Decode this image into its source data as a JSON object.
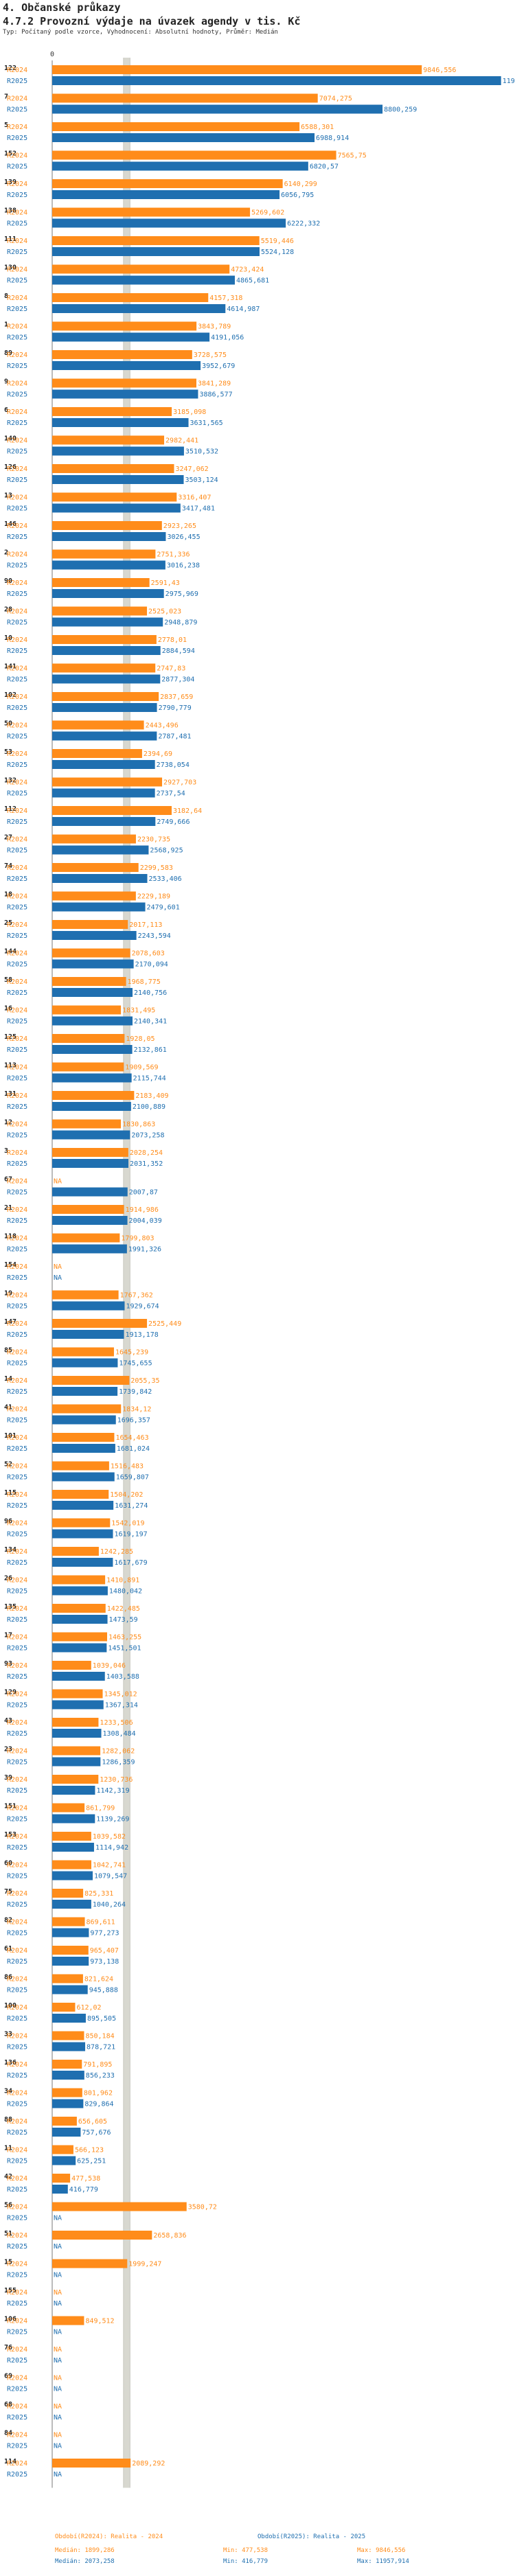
{
  "header": {
    "section": "4. Občanské průkazy",
    "title": "4.7.2 Provozní výdaje na úvazek agendy v tis. Kč",
    "subtitle": "Typ: Počítaný podle vzorce, Vyhodnocení: Absolutní hodnoty, Průměr: Medián"
  },
  "legend": {
    "series1": "Období(R2024): Realita - 2024",
    "series2": "Období(R2025): Realita - 2025",
    "median1": "Medián: 1899,286",
    "min1": "Min: 477,538",
    "max1": "Max: 9846,556",
    "median2": "Medián: 2073,258",
    "min2": "Min: 416,779",
    "max2": "Max: 11957,914"
  },
  "colors": {
    "y2024": "#ff8c1a",
    "y2025": "#1f6fb0",
    "median": "#d8d8d0"
  },
  "chart_data": {
    "type": "bar",
    "orientation": "horizontal",
    "xlim": [
      0,
      12000
    ],
    "x_ticks": [
      "0"
    ],
    "medians": {
      "R2024": 1899.286,
      "R2025": 2073.258
    },
    "series": [
      {
        "name": "R2024",
        "label": "R2024"
      },
      {
        "name": "R2025",
        "label": "R2025"
      }
    ],
    "groups": [
      {
        "id": "122",
        "v24": 9846.556,
        "t24": "9846,556",
        "v25": 11957.914,
        "t25": "11957,914"
      },
      {
        "id": "7",
        "v24": 7074.275,
        "t24": "7074,275",
        "v25": 8800.259,
        "t25": "8800,259"
      },
      {
        "id": "5",
        "v24": 6588.301,
        "t24": "6588,301",
        "v25": 6988.914,
        "t25": "6988,914"
      },
      {
        "id": "152",
        "v24": 7565.75,
        "t24": "7565,75",
        "v25": 6820.57,
        "t25": "6820,57"
      },
      {
        "id": "139",
        "v24": 6140.299,
        "t24": "6140,299",
        "v25": 6056.795,
        "t25": "6056,795"
      },
      {
        "id": "138",
        "v24": 5269.602,
        "t24": "5269,602",
        "v25": 6222.332,
        "t25": "6222,332"
      },
      {
        "id": "111",
        "v24": 5519.446,
        "t24": "5519,446",
        "v25": 5524.128,
        "t25": "5524,128"
      },
      {
        "id": "130",
        "v24": 4723.424,
        "t24": "4723,424",
        "v25": 4865.681,
        "t25": "4865,681"
      },
      {
        "id": "8",
        "v24": 4157.318,
        "t24": "4157,318",
        "v25": 4614.987,
        "t25": "4614,987"
      },
      {
        "id": "1",
        "v24": 3843.789,
        "t24": "3843,789",
        "v25": 4191.056,
        "t25": "4191,056"
      },
      {
        "id": "89",
        "v24": 3728.575,
        "t24": "3728,575",
        "v25": 3952.679,
        "t25": "3952,679"
      },
      {
        "id": "9",
        "v24": 3841.289,
        "t24": "3841,289",
        "v25": 3886.577,
        "t25": "3886,577"
      },
      {
        "id": "6",
        "v24": 3185.098,
        "t24": "3185,098",
        "v25": 3631.565,
        "t25": "3631,565"
      },
      {
        "id": "140",
        "v24": 2982.441,
        "t24": "2982,441",
        "v25": 3510.532,
        "t25": "3510,532"
      },
      {
        "id": "126",
        "v24": 3247.062,
        "t24": "3247,062",
        "v25": 3503.124,
        "t25": "3503,124"
      },
      {
        "id": "13",
        "v24": 3316.407,
        "t24": "3316,407",
        "v25": 3417.481,
        "t25": "3417,481"
      },
      {
        "id": "146",
        "v24": 2923.265,
        "t24": "2923,265",
        "v25": 3026.455,
        "t25": "3026,455"
      },
      {
        "id": "2",
        "v24": 2751.336,
        "t24": "2751,336",
        "v25": 3016.238,
        "t25": "3016,238"
      },
      {
        "id": "90",
        "v24": 2591.43,
        "t24": "2591,43",
        "v25": 2975.969,
        "t25": "2975,969"
      },
      {
        "id": "28",
        "v24": 2525.023,
        "t24": "2525,023",
        "v25": 2948.879,
        "t25": "2948,879"
      },
      {
        "id": "10",
        "v24": 2778.01,
        "t24": "2778,01",
        "v25": 2884.594,
        "t25": "2884,594"
      },
      {
        "id": "141",
        "v24": 2747.83,
        "t24": "2747,83",
        "v25": 2877.304,
        "t25": "2877,304"
      },
      {
        "id": "102",
        "v24": 2837.659,
        "t24": "2837,659",
        "v25": 2790.779,
        "t25": "2790,779"
      },
      {
        "id": "50",
        "v24": 2443.496,
        "t24": "2443,496",
        "v25": 2787.481,
        "t25": "2787,481"
      },
      {
        "id": "53",
        "v24": 2394.69,
        "t24": "2394,69",
        "v25": 2738.054,
        "t25": "2738,054"
      },
      {
        "id": "132",
        "v24": 2927.703,
        "t24": "2927,703",
        "v25": 2737.54,
        "t25": "2737,54"
      },
      {
        "id": "112",
        "v24": 3182.64,
        "t24": "3182,64",
        "v25": 2749.666,
        "t25": "2749,666"
      },
      {
        "id": "27",
        "v24": 2230.735,
        "t24": "2230,735",
        "v25": 2568.925,
        "t25": "2568,925"
      },
      {
        "id": "74",
        "v24": 2299.583,
        "t24": "2299,583",
        "v25": 2533.406,
        "t25": "2533,406"
      },
      {
        "id": "18",
        "v24": 2229.189,
        "t24": "2229,189",
        "v25": 2479.601,
        "t25": "2479,601"
      },
      {
        "id": "25",
        "v24": 2017.113,
        "t24": "2017,113",
        "v25": 2243.594,
        "t25": "2243,594"
      },
      {
        "id": "144",
        "v24": 2078.603,
        "t24": "2078,603",
        "v25": 2170.094,
        "t25": "2170,094"
      },
      {
        "id": "58",
        "v24": 1968.775,
        "t24": "1968,775",
        "v25": 2140.756,
        "t25": "2140,756"
      },
      {
        "id": "16",
        "v24": 1831.495,
        "t24": "1831,495",
        "v25": 2140.341,
        "t25": "2140,341"
      },
      {
        "id": "125",
        "v24": 1928.05,
        "t24": "1928,05",
        "v25": 2132.861,
        "t25": "2132,861"
      },
      {
        "id": "113",
        "v24": 1909.569,
        "t24": "1909,569",
        "v25": 2115.744,
        "t25": "2115,744"
      },
      {
        "id": "131",
        "v24": 2183.409,
        "t24": "2183,409",
        "v25": 2100.889,
        "t25": "2100,889"
      },
      {
        "id": "12",
        "v24": 1830.863,
        "t24": "1830,863",
        "v25": 2073.258,
        "t25": "2073,258"
      },
      {
        "id": "3",
        "v24": 2028.254,
        "t24": "2028,254",
        "v25": 2031.352,
        "t25": "2031,352"
      },
      {
        "id": "67",
        "v24": null,
        "t24": "NA",
        "v25": 2007.87,
        "t25": "2007,87"
      },
      {
        "id": "21",
        "v24": 1914.986,
        "t24": "1914,986",
        "v25": 2004.039,
        "t25": "2004,039"
      },
      {
        "id": "118",
        "v24": 1799.803,
        "t24": "1799,803",
        "v25": 1991.326,
        "t25": "1991,326"
      },
      {
        "id": "154",
        "v24": null,
        "t24": "NA",
        "v25": null,
        "t25": "NA"
      },
      {
        "id": "19",
        "v24": 1767.362,
        "t24": "1767,362",
        "v25": 1929.674,
        "t25": "1929,674"
      },
      {
        "id": "147",
        "v24": 2525.449,
        "t24": "2525,449",
        "v25": 1913.178,
        "t25": "1913,178"
      },
      {
        "id": "85",
        "v24": 1645.239,
        "t24": "1645,239",
        "v25": 1745.655,
        "t25": "1745,655"
      },
      {
        "id": "14",
        "v24": 2055.35,
        "t24": "2055,35",
        "v25": 1739.842,
        "t25": "1739,842"
      },
      {
        "id": "41",
        "v24": 1834.12,
        "t24": "1834,12",
        "v25": 1696.357,
        "t25": "1696,357"
      },
      {
        "id": "101",
        "v24": 1654.463,
        "t24": "1654,463",
        "v25": 1681.024,
        "t25": "1681,024"
      },
      {
        "id": "52",
        "v24": 1516.483,
        "t24": "1516,483",
        "v25": 1659.807,
        "t25": "1659,807"
      },
      {
        "id": "115",
        "v24": 1504.202,
        "t24": "1504,202",
        "v25": 1631.274,
        "t25": "1631,274"
      },
      {
        "id": "96",
        "v24": 1542.019,
        "t24": "1542,019",
        "v25": 1619.197,
        "t25": "1619,197"
      },
      {
        "id": "134",
        "v24": 1242.285,
        "t24": "1242,285",
        "v25": 1617.679,
        "t25": "1617,679"
      },
      {
        "id": "26",
        "v24": 1410.891,
        "t24": "1410,891",
        "v25": 1480.042,
        "t25": "1480,042"
      },
      {
        "id": "135",
        "v24": 1422.485,
        "t24": "1422,485",
        "v25": 1473.59,
        "t25": "1473,59"
      },
      {
        "id": "17",
        "v24": 1463.255,
        "t24": "1463,255",
        "v25": 1451.501,
        "t25": "1451,501"
      },
      {
        "id": "93",
        "v24": 1039.046,
        "t24": "1039,046",
        "v25": 1403.588,
        "t25": "1403,588"
      },
      {
        "id": "129",
        "v24": 1345.012,
        "t24": "1345,012",
        "v25": 1367.314,
        "t25": "1367,314"
      },
      {
        "id": "43",
        "v24": 1233.506,
        "t24": "1233,506",
        "v25": 1308.484,
        "t25": "1308,484"
      },
      {
        "id": "23",
        "v24": 1282.062,
        "t24": "1282,062",
        "v25": 1286.359,
        "t25": "1286,359"
      },
      {
        "id": "39",
        "v24": 1230.736,
        "t24": "1230,736",
        "v25": 1142.319,
        "t25": "1142,319"
      },
      {
        "id": "151",
        "v24": 861.799,
        "t24": "861,799",
        "v25": 1139.269,
        "t25": "1139,269"
      },
      {
        "id": "153",
        "v24": 1039.582,
        "t24": "1039,582",
        "v25": 1114.942,
        "t25": "1114,942"
      },
      {
        "id": "60",
        "v24": 1042.741,
        "t24": "1042,741",
        "v25": 1079.547,
        "t25": "1079,547"
      },
      {
        "id": "75",
        "v24": 825.331,
        "t24": "825,331",
        "v25": 1040.264,
        "t25": "1040,264"
      },
      {
        "id": "82",
        "v24": 869.611,
        "t24": "869,611",
        "v25": 977.273,
        "t25": "977,273"
      },
      {
        "id": "61",
        "v24": 965.407,
        "t24": "965,407",
        "v25": 973.138,
        "t25": "973,138"
      },
      {
        "id": "86",
        "v24": 821.624,
        "t24": "821,624",
        "v25": 945.888,
        "t25": "945,888"
      },
      {
        "id": "100",
        "v24": 612.02,
        "t24": "612,02",
        "v25": 895.505,
        "t25": "895,505"
      },
      {
        "id": "33",
        "v24": 850.184,
        "t24": "850,184",
        "v25": 878.721,
        "t25": "878,721"
      },
      {
        "id": "136",
        "v24": 791.895,
        "t24": "791,895",
        "v25": 856.233,
        "t25": "856,233"
      },
      {
        "id": "34",
        "v24": 801.962,
        "t24": "801,962",
        "v25": 829.864,
        "t25": "829,864"
      },
      {
        "id": "88",
        "v24": 656.605,
        "t24": "656,605",
        "v25": 757.676,
        "t25": "757,676"
      },
      {
        "id": "11",
        "v24": 566.123,
        "t24": "566,123",
        "v25": 625.251,
        "t25": "625,251"
      },
      {
        "id": "42",
        "v24": 477.538,
        "t24": "477,538",
        "v25": 416.779,
        "t25": "416,779"
      },
      {
        "id": "56",
        "v24": 3580.72,
        "t24": "3580,72",
        "v25": null,
        "t25": "NA"
      },
      {
        "id": "51",
        "v24": 2658.836,
        "t24": "2658,836",
        "v25": null,
        "t25": "NA"
      },
      {
        "id": "15",
        "v24": 1999.247,
        "t24": "1999,247",
        "v25": null,
        "t25": "NA"
      },
      {
        "id": "155",
        "v24": null,
        "t24": "NA",
        "v25": null,
        "t25": "NA"
      },
      {
        "id": "106",
        "v24": 849.512,
        "t24": "849,512",
        "v25": null,
        "t25": "NA"
      },
      {
        "id": "76",
        "v24": null,
        "t24": "NA",
        "v25": null,
        "t25": "NA"
      },
      {
        "id": "69",
        "v24": null,
        "t24": "NA",
        "v25": null,
        "t25": "NA"
      },
      {
        "id": "68",
        "v24": null,
        "t24": "NA",
        "v25": null,
        "t25": "NA"
      },
      {
        "id": "84",
        "v24": null,
        "t24": "NA",
        "v25": null,
        "t25": "NA"
      },
      {
        "id": "114",
        "v24": 2089.292,
        "t24": "2089,292",
        "v25": null,
        "t25": "NA"
      }
    ]
  }
}
